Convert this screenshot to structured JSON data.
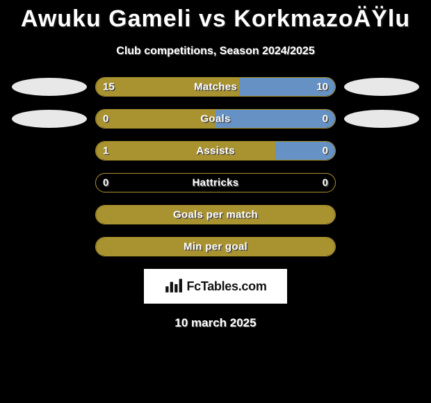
{
  "title": "Awuku Gameli vs KorkmazoÄŸlu",
  "subtitle": "Club competitions, Season 2024/2025",
  "date": "10 march 2025",
  "watermark": "FcTables.com",
  "colors": {
    "background": "#000000",
    "olive": "#a99230",
    "blue": "#6691c4",
    "bubble": "#e8e8e8",
    "text": "#ffffff"
  },
  "rows": [
    {
      "label": "Matches",
      "left_value": "15",
      "right_value": "10",
      "left_num": 15,
      "right_num": 10,
      "left_color": "#a99230",
      "right_color": "#6691c4",
      "left_pct": 60,
      "right_pct": 40,
      "show_bubbles": true
    },
    {
      "label": "Goals",
      "left_value": "0",
      "right_value": "0",
      "left_num": 0,
      "right_num": 0,
      "left_color": "#a99230",
      "right_color": "#6691c4",
      "left_pct": 50,
      "right_pct": 50,
      "show_bubbles": true
    },
    {
      "label": "Assists",
      "left_value": "1",
      "right_value": "0",
      "left_num": 1,
      "right_num": 0,
      "left_color": "#a99230",
      "right_color": "#6691c4",
      "left_pct": 75,
      "right_pct": 25,
      "show_bubbles": false
    },
    {
      "label": "Hattricks",
      "left_value": "0",
      "right_value": "0",
      "left_num": 0,
      "right_num": 0,
      "left_color": "#a99230",
      "right_color": "#6691c4",
      "left_pct": 0,
      "right_pct": 0,
      "show_bubbles": false
    },
    {
      "label": "Goals per match",
      "left_value": "",
      "right_value": "",
      "left_num": 0,
      "right_num": 0,
      "left_color": "#a99230",
      "right_color": "#6691c4",
      "left_pct": 100,
      "right_pct": 0,
      "show_bubbles": false,
      "full_olive": true
    },
    {
      "label": "Min per goal",
      "left_value": "",
      "right_value": "",
      "left_num": 0,
      "right_num": 0,
      "left_color": "#a99230",
      "right_color": "#6691c4",
      "left_pct": 100,
      "right_pct": 0,
      "show_bubbles": false,
      "full_olive": true
    }
  ]
}
